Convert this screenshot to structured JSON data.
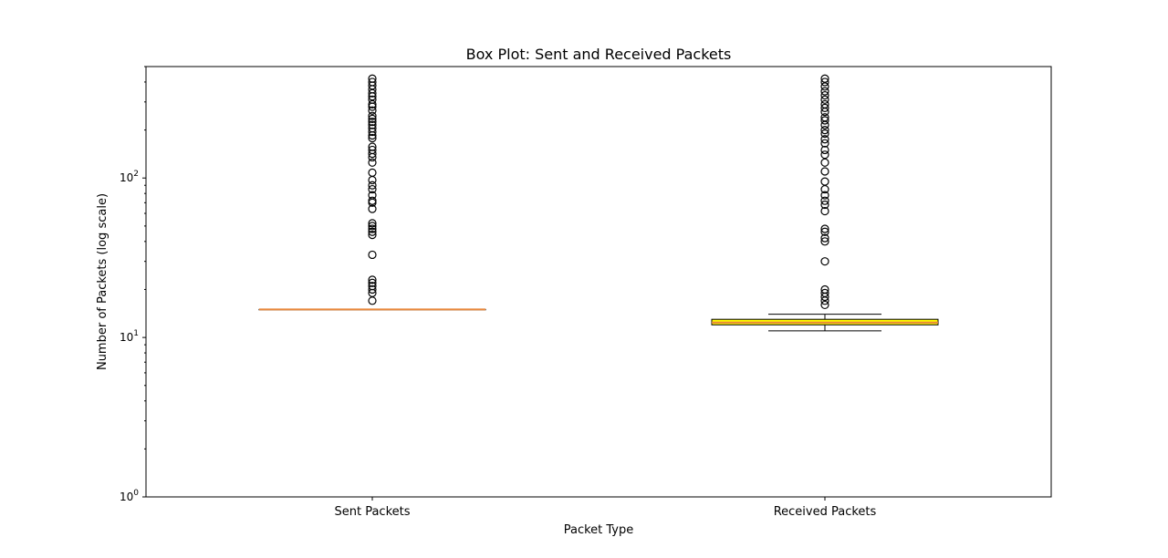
{
  "chart_data": {
    "type": "box",
    "title": "Box Plot: Sent and Received Packets",
    "xlabel": "Packet Type",
    "ylabel": "Number of Packets (log scale)",
    "yscale": "log",
    "ylim": [
      1,
      500
    ],
    "yticks": [
      1,
      10,
      100
    ],
    "ytick_base": "10",
    "ytick_exponents": [
      "0",
      "1",
      "2"
    ],
    "grid": false,
    "categories": [
      "Sent Packets",
      "Received Packets"
    ],
    "boxes": [
      {
        "name": "Sent Packets",
        "min": 15,
        "q1": 15,
        "median": 15,
        "q3": 15,
        "max": 15,
        "box_color": "#1f77b4",
        "median_color": "#e8873a",
        "outliers": [
          17,
          19,
          20,
          21,
          22,
          23,
          33,
          44,
          46,
          48,
          50,
          52,
          64,
          70,
          72,
          78,
          85,
          90,
          97,
          108,
          125,
          135,
          142,
          150,
          157,
          178,
          185,
          195,
          205,
          215,
          225,
          235,
          245,
          265,
          280,
          290,
          310,
          325,
          340,
          360,
          380,
          400,
          420
        ]
      },
      {
        "name": "Received Packets",
        "min": 11,
        "q1": 12,
        "median": 12.4,
        "q3": 13,
        "max": 14,
        "box_color": "#ffff00",
        "median_color": "#e8873a",
        "outliers": [
          16,
          17,
          18,
          19,
          20,
          30,
          40,
          42,
          46,
          48,
          62,
          68,
          72,
          78,
          85,
          95,
          110,
          125,
          140,
          150,
          165,
          175,
          190,
          200,
          215,
          230,
          240,
          260,
          275,
          290,
          310,
          330,
          350,
          375,
          400,
          420
        ]
      }
    ]
  }
}
